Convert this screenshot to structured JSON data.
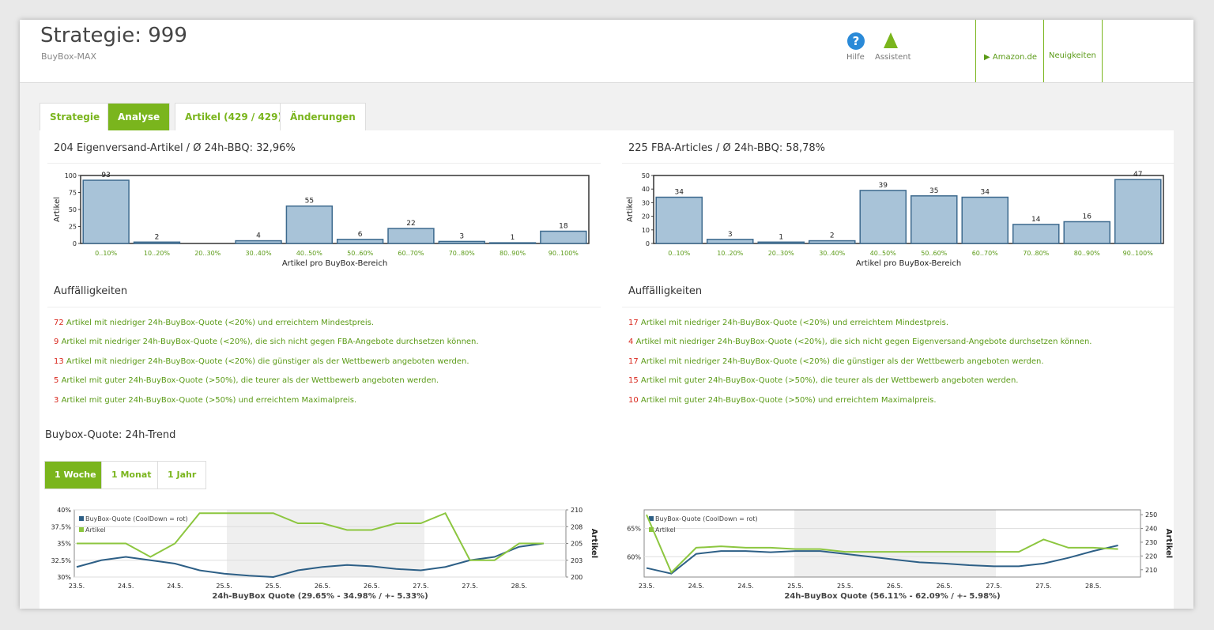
{
  "header": {
    "title": "Strategie: 999",
    "subtitle": "BuyBox-MAX",
    "help": "Hilfe",
    "assistant": "Assistent",
    "marketplace": "Amazon.de",
    "news": "Neuigkeiten"
  },
  "tabs": [
    "Strategie",
    "Analyse",
    "Artikel (429 / 429)",
    "Änderungen"
  ],
  "panels": [
    {
      "title": "204 Eigenversand-Artikel / Ø 24h-BBQ: 32,96%",
      "notes_title": "Auffälligkeiten",
      "notes": [
        {
          "count": 72,
          "text": "Artikel mit niedriger 24h-BuyBox-Quote (<20%) und erreichtem Mindestpreis."
        },
        {
          "count": 9,
          "text": "Artikel mit niedriger 24h-BuyBox-Quote (<20%), die sich nicht gegen FBA-Angebote durchsetzen können."
        },
        {
          "count": 13,
          "text": "Artikel mit niedriger 24h-BuyBox-Quote (<20%) die günstiger als der Wettbewerb angeboten werden."
        },
        {
          "count": 5,
          "text": "Artikel mit guter 24h-BuyBox-Quote (>50%), die teurer als der Wettbewerb angeboten werden."
        },
        {
          "count": 3,
          "text": "Artikel mit guter 24h-BuyBox-Quote (>50%) und erreichtem Maximalpreis."
        }
      ]
    },
    {
      "title": "225 FBA-Articles / Ø 24h-BBQ: 58,78%",
      "notes_title": "Auffälligkeiten",
      "notes": [
        {
          "count": 17,
          "text": "Artikel mit niedriger 24h-BuyBox-Quote (<20%) und erreichtem Mindestpreis."
        },
        {
          "count": 4,
          "text": "Artikel mit niedriger 24h-BuyBox-Quote (<20%), die sich nicht gegen Eigenversand-Angebote durchsetzen können."
        },
        {
          "count": 17,
          "text": "Artikel mit niedriger 24h-BuyBox-Quote (<20%) die günstiger als der Wettbewerb angeboten werden."
        },
        {
          "count": 15,
          "text": "Artikel mit guter 24h-BuyBox-Quote (>50%), die teurer als der Wettbewerb angeboten werden."
        },
        {
          "count": 10,
          "text": "Artikel mit guter 24h-BuyBox-Quote (>50%) und erreichtem Maximalpreis."
        }
      ]
    }
  ],
  "trend": {
    "title": "Buybox-Quote: 24h-Trend",
    "ranges": [
      "1 Woche",
      "1 Monat",
      "1 Jahr"
    ]
  },
  "chart_data": [
    {
      "type": "bar",
      "ylabel": "Artikel",
      "xlabel": "Artikel pro BuyBox-Bereich",
      "color": "#a8c3d8",
      "categories": [
        "0..10%",
        "10..20%",
        "20..30%",
        "30..40%",
        "40..50%",
        "50..60%",
        "60..70%",
        "70..80%",
        "80..90%",
        "90..100%"
      ],
      "values": [
        93,
        2,
        0,
        4,
        55,
        6,
        22,
        3,
        1,
        18
      ],
      "ylim": [
        0,
        100
      ],
      "yticks": [
        0,
        25,
        50,
        75,
        100
      ]
    },
    {
      "type": "bar",
      "ylabel": "Artikel",
      "xlabel": "Artikel pro BuyBox-Bereich",
      "color": "#a8c3d8",
      "categories": [
        "0..10%",
        "10..20%",
        "20..30%",
        "30..40%",
        "40..50%",
        "50..60%",
        "60..70%",
        "70..80%",
        "80..90%",
        "90..100%"
      ],
      "values": [
        34,
        3,
        1,
        2,
        39,
        35,
        34,
        14,
        16,
        47
      ],
      "ylim": [
        0,
        50
      ],
      "yticks": [
        0,
        10,
        20,
        30,
        40,
        50
      ]
    },
    {
      "type": "line",
      "xlabel": "24h-BuyBox Quote (29.65% - 34.98% / +- 5.33%)",
      "y2label": "Artikel",
      "categories": [
        "23.5.",
        null,
        "24.5.",
        null,
        "24.5.",
        null,
        "25.5.",
        null,
        "25.5.",
        null,
        "26.5.",
        null,
        "26.5.",
        null,
        "27.5.",
        null,
        "27.5.",
        null,
        "28.5.",
        null
      ],
      "series": [
        {
          "name": "BuyBox-Quote (CoolDown = rot)",
          "color": "#2d5f86",
          "values": [
            31.5,
            32.5,
            33,
            32.5,
            32,
            31,
            30.5,
            30.2,
            30,
            31,
            31.5,
            31.8,
            31.6,
            31.2,
            31,
            31.5,
            32.5,
            33,
            34.5,
            35
          ]
        },
        {
          "name": "Artikel",
          "color": "#8cc63f",
          "axis": "y2",
          "values": [
            205,
            205,
            205,
            203,
            205,
            209.5,
            209.5,
            209.5,
            209.5,
            208,
            208,
            207,
            207,
            208,
            208,
            209.5,
            202.5,
            202.5,
            205,
            205
          ]
        }
      ],
      "ylim": [
        30,
        40
      ],
      "yticks": [
        {
          "value": 30,
          "label": "30%"
        },
        {
          "value": 32.5,
          "label": "32.5%"
        },
        {
          "value": 35,
          "label": "35%"
        },
        {
          "value": 37.5,
          "label": "37.5%"
        },
        {
          "value": 40,
          "label": "40%"
        }
      ],
      "y2lim": [
        200,
        210
      ],
      "y2ticks": [
        200,
        {
          "value": 202.5,
          "label": "203"
        },
        205,
        {
          "value": 207.5,
          "label": "208"
        },
        210
      ]
    },
    {
      "type": "line",
      "xlabel": "24h-BuyBox Quote (56.11% - 62.09% / +- 5.98%)",
      "y2label": "Artikel",
      "categories": [
        "23.5.",
        null,
        "24.5.",
        null,
        "24.5.",
        null,
        "25.5.",
        null,
        "25.5.",
        null,
        "26.5.",
        null,
        "26.5.",
        null,
        "27.5.",
        null,
        "27.5.",
        null,
        "28.5.",
        null
      ],
      "series": [
        {
          "name": "BuyBox-Quote (CoolDown = rot)",
          "color": "#2d5f86",
          "values": [
            58,
            57,
            60.5,
            61,
            61,
            60.8,
            61,
            61,
            60.5,
            60,
            59.5,
            59,
            58.8,
            58.5,
            58.3,
            58.3,
            58.8,
            59.8,
            61,
            62
          ]
        },
        {
          "name": "Artikel",
          "color": "#8cc63f",
          "axis": "y2",
          "values": [
            250,
            208,
            226,
            227,
            226,
            226,
            225,
            225,
            223,
            223,
            223,
            223,
            223,
            223,
            223,
            223,
            232,
            226,
            226,
            225
          ]
        }
      ],
      "ylim": [
        56.4,
        68.3
      ],
      "yticks": [
        {
          "value": 60,
          "label": "60%"
        },
        {
          "value": 65,
          "label": "65%"
        }
      ],
      "y2lim": [
        204.7,
        253.5
      ],
      "y2ticks": [
        210,
        220,
        230,
        240,
        250
      ]
    }
  ]
}
